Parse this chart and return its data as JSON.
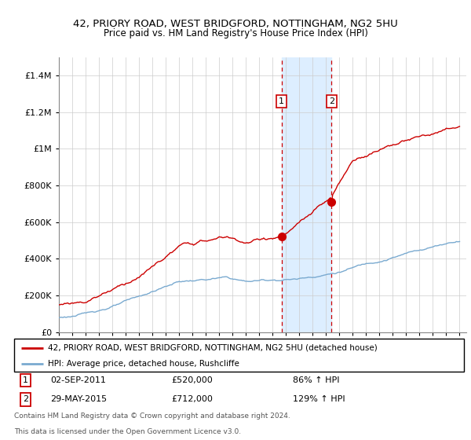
{
  "title1": "42, PRIORY ROAD, WEST BRIDGFORD, NOTTINGHAM, NG2 5HU",
  "title2": "Price paid vs. HM Land Registry's House Price Index (HPI)",
  "ylim": [
    0,
    1500000
  ],
  "yticks": [
    0,
    200000,
    400000,
    600000,
    800000,
    1000000,
    1200000,
    1400000
  ],
  "ytick_labels": [
    "£0",
    "£200K",
    "£400K",
    "£600K",
    "£800K",
    "£1M",
    "£1.2M",
    "£1.4M"
  ],
  "grid_color": "#cccccc",
  "legend_label_red": "42, PRIORY ROAD, WEST BRIDGFORD, NOTTINGHAM, NG2 5HU (detached house)",
  "legend_label_blue": "HPI: Average price, detached house, Rushcliffe",
  "red_color": "#cc0000",
  "blue_color": "#7aaad0",
  "event1_date_x": 2011.67,
  "event1_price": 520000,
  "event2_date_x": 2015.41,
  "event2_price": 712000,
  "event1_label": "1",
  "event2_label": "2",
  "shaded_start": 2011.67,
  "shaded_end": 2015.41,
  "shaded_color": "#ddeeff",
  "footer1": "Contains HM Land Registry data © Crown copyright and database right 2024.",
  "footer2": "This data is licensed under the Open Government Licence v3.0.",
  "table_row1": [
    "1",
    "02-SEP-2011",
    "£520,000",
    "86% ↑ HPI"
  ],
  "table_row2": [
    "2",
    "29-MAY-2015",
    "£712,000",
    "129% ↑ HPI"
  ],
  "xmin": 1995.0,
  "xmax": 2025.5
}
